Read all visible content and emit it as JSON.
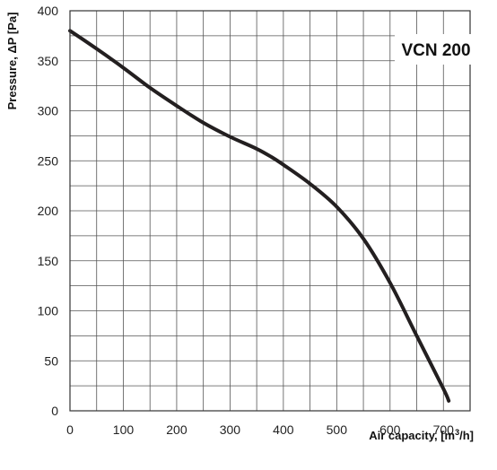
{
  "chart_data": {
    "type": "line",
    "title": "VCN 200",
    "xlabel": "Air capacity, [m",
    "xlabel_sup": "3",
    "xlabel_end": "/h]",
    "ylabel": "Pressure, ΔP [Pa]",
    "xlim": [
      0,
      750
    ],
    "ylim": [
      0,
      400
    ],
    "x_ticks": [
      0,
      100,
      200,
      300,
      400,
      500,
      600,
      700
    ],
    "y_ticks": [
      0,
      50,
      100,
      150,
      200,
      250,
      300,
      350,
      400
    ],
    "x_grid_step": 50,
    "y_grid_step": 25,
    "grid": true,
    "colors": {
      "curve": "#231f20",
      "grid": "#555555",
      "background": "#ffffff"
    },
    "series": [
      {
        "x": [
          0,
          50,
          100,
          150,
          200,
          250,
          300,
          350,
          380,
          400,
          450,
          500,
          550,
          600,
          650,
          700,
          710
        ],
        "values": [
          380,
          362,
          343,
          323,
          305,
          288,
          274,
          262,
          253,
          246,
          227,
          204,
          172,
          128,
          75,
          22,
          10
        ]
      }
    ]
  }
}
